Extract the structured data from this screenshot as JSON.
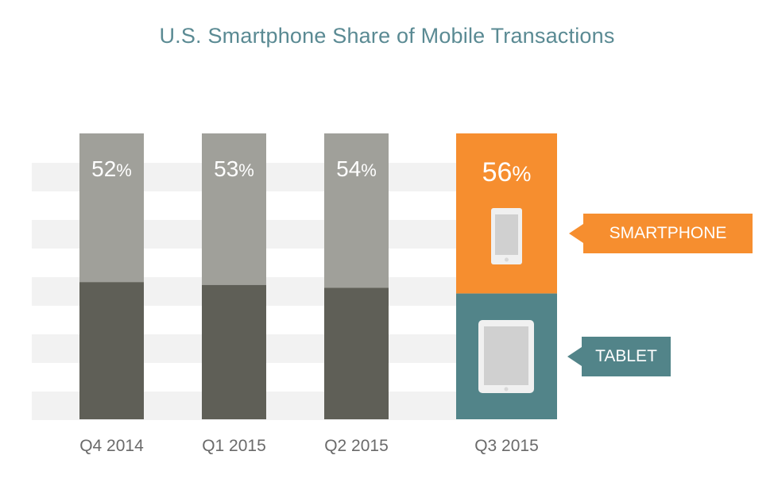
{
  "chart_data": {
    "type": "bar",
    "stacked": true,
    "title": "U.S. Smartphone Share of Mobile Transactions",
    "xlabel": "",
    "ylabel": "",
    "ylim": [
      0,
      100
    ],
    "grid": "horizontal bands",
    "categories": [
      "Q4 2014",
      "Q1 2015",
      "Q2 2015",
      "Q3 2015"
    ],
    "series": [
      {
        "name": "Smartphone",
        "values": [
          52,
          53,
          54,
          56
        ]
      },
      {
        "name": "Tablet",
        "values": [
          48,
          47,
          46,
          44
        ]
      }
    ],
    "data_labels": [
      "52%",
      "53%",
      "54%",
      "56%"
    ],
    "legend": [
      "SMARTPHONE",
      "TABLET"
    ],
    "legend_placement": "right",
    "highlight_category": "Q3 2015",
    "colors": {
      "smartphone_default": "#a0a09a",
      "tablet_default": "#5f5f57",
      "smartphone_highlight": "#f68e2f",
      "tablet_highlight": "#528489",
      "band": "#f2f2f2",
      "title": "#5a8a93",
      "tick": "#6a6a6a"
    },
    "icons": {
      "smartphone": "smartphone-icon",
      "tablet": "tablet-icon"
    }
  }
}
